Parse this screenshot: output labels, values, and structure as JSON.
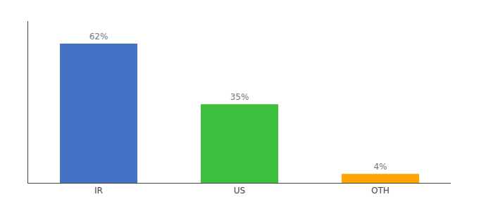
{
  "chart_data": {
    "type": "bar",
    "categories": [
      "IR",
      "US",
      "OTH"
    ],
    "values": [
      62,
      35,
      4
    ],
    "value_labels": [
      "62%",
      "35%",
      "4%"
    ],
    "colors": [
      "#4472C4",
      "#3DBE3D",
      "#FFA500"
    ],
    "ylim": [
      0,
      72
    ],
    "data_labels": true,
    "tick_labels": "x",
    "grid": false
  }
}
